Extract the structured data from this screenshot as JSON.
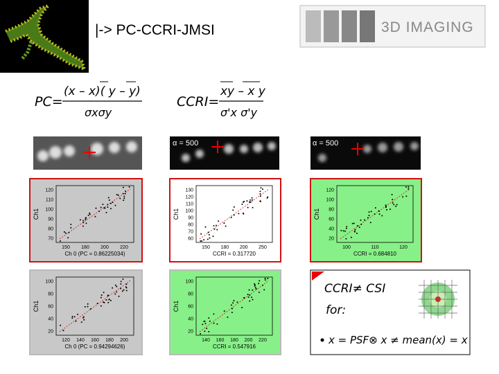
{
  "title": "|-> PC-CCRI-JMSI",
  "logo": "3D IMAGING",
  "formulas": {
    "pc": {
      "lhs": "PC=",
      "numerator": "(x – x)( y – y)",
      "denominator": "σxσy"
    },
    "ccri": {
      "lhs": "CCRI=",
      "numerator": "xy – x y",
      "denominator": "σ'x σ'y"
    }
  },
  "image_labels": [
    "α = 500",
    "α = 500"
  ],
  "plots": [
    {
      "y_label": "Ch1",
      "x_label": "Ch 0 (PC = 0.86225034)",
      "yticks": [
        "120",
        "110",
        "100",
        "90",
        "80",
        "70"
      ],
      "xticks": [
        "150",
        "180",
        "200",
        "220"
      ]
    },
    {
      "y_label": "Ch1",
      "x_label": "CCRI = 0.317720",
      "yticks": [
        "130",
        "120",
        "110",
        "100",
        "90",
        "80",
        "70",
        "60"
      ],
      "xticks": [
        "150",
        "180",
        "200",
        "250"
      ]
    },
    {
      "y_label": "Ch1",
      "x_label": "CCRI = 0.684810",
      "yticks": [
        "120",
        "100",
        "80",
        "60",
        "40",
        "20"
      ],
      "xticks": [
        "100",
        "110",
        "120"
      ]
    },
    {
      "y_label": "Ch1",
      "x_label": "Ch 0 (PC = 0.94294626)",
      "yticks": [
        "100",
        "80",
        "60",
        "40",
        "20"
      ],
      "xticks": [
        "120",
        "140",
        "160",
        "180",
        "200"
      ]
    },
    {
      "y_label": "Ch1",
      "x_label": "CCRI = 0.547916",
      "yticks": [
        "100",
        "80",
        "60",
        "40",
        "20"
      ],
      "xticks": [
        "140",
        "160",
        "180",
        "200",
        "220"
      ]
    }
  ],
  "note": {
    "heading": "CCRI≠ CSI",
    "for": "for:",
    "bullet": "x = PSF⊗ x ≠ mean(x) = x"
  }
}
